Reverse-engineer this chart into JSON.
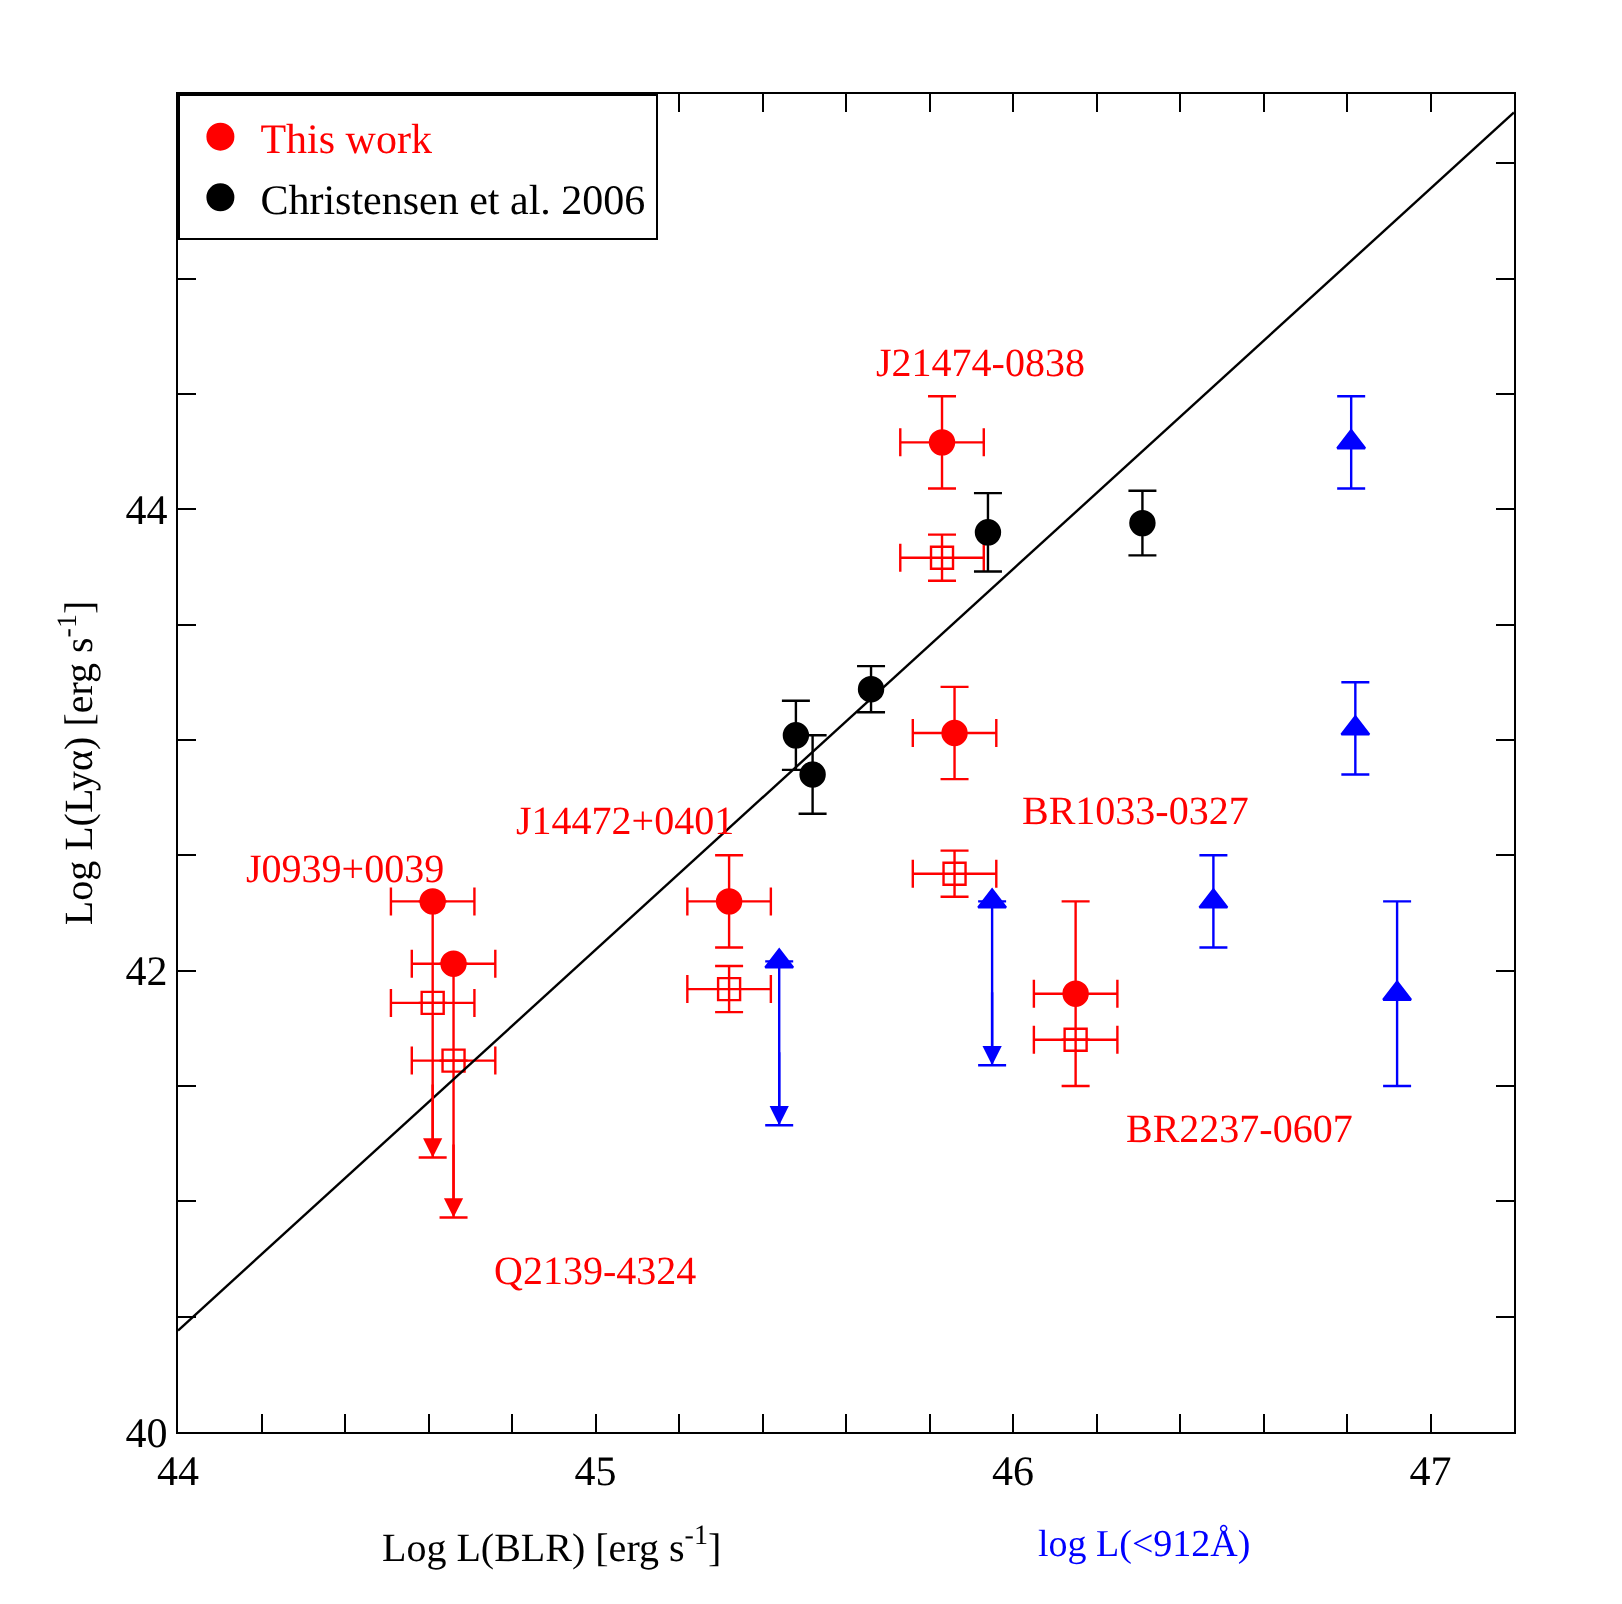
{
  "chart_data": {
    "type": "scatter",
    "xlabel": "Log L(BLR) [erg s$^{-1}$]",
    "ylabel": "Log L(Lyα) [erg s$^{-1}$]",
    "xlim": [
      44,
      47.2
    ],
    "ylim": [
      40,
      45.8
    ],
    "xticks": [
      44,
      {
        "value": 44.2,
        "label": null
      },
      {
        "value": 44.4,
        "label": null
      },
      {
        "value": 44.6,
        "label": null
      },
      {
        "value": 44.8,
        "label": null
      },
      45,
      {
        "value": 45.2,
        "label": null
      },
      {
        "value": 45.4,
        "label": null
      },
      {
        "value": 45.6,
        "label": null
      },
      {
        "value": 45.8,
        "label": null
      },
      46,
      {
        "value": 46.2,
        "label": null
      },
      {
        "value": 46.4,
        "label": null
      },
      {
        "value": 46.6,
        "label": null
      },
      {
        "value": 46.8,
        "label": null
      },
      47
    ],
    "yticks": [
      40,
      {
        "value": 40.5,
        "label": null
      },
      {
        "value": 41,
        "label": null
      },
      {
        "value": 41.5,
        "label": null
      },
      42,
      {
        "value": 42.5,
        "label": null
      },
      {
        "value": 43,
        "label": null
      },
      {
        "value": 43.5,
        "label": null
      },
      44,
      {
        "value": 44.5,
        "label": null
      },
      {
        "value": 45,
        "label": null
      },
      {
        "value": 45.5,
        "label": null
      }
    ],
    "legend": "top left",
    "series": [
      {
        "name": "This work",
        "color": "#ff0000",
        "marker": "circle",
        "x": [
          44.61,
          44.66,
          45.32,
          45.83,
          45.86,
          46.15
        ],
        "values": [
          42.3,
          42.03,
          42.3,
          44.29,
          43.03,
          41.9
        ],
        "xerrors": [
          0.1,
          0.1,
          0.1,
          0.1,
          0.1,
          0.1
        ],
        "errors": [
          [
            41.19,
            42.3
          ],
          [
            40.93,
            42.03
          ],
          0.2,
          0.2,
          0.2,
          0.4
        ]
      },
      {
        "color": "#ff0000",
        "marker": "square",
        "x": [
          44.61,
          44.66,
          45.32,
          45.83,
          45.86,
          46.15
        ],
        "values": [
          41.86,
          41.61,
          41.92,
          43.79,
          42.42,
          41.7
        ],
        "xerrors": [
          0.1,
          0.1,
          0.1,
          0.1,
          0.1,
          0.1
        ],
        "errors": [
          null,
          null,
          0.1,
          0.1,
          0.1,
          null
        ]
      },
      {
        "name": "Christensen et al. 2006",
        "color": "#000000",
        "marker": "circle",
        "x": [
          45.48,
          45.52,
          45.66,
          45.94,
          46.31
        ],
        "values": [
          43.02,
          42.85,
          43.22,
          43.9,
          43.94
        ],
        "errors": [
          0.15,
          0.17,
          0.1,
          0.17,
          0.14
        ]
      },
      {
        "color": "#0000ff",
        "marker": "triangle",
        "x": [
          46.81,
          46.82,
          46.48,
          46.92,
          45.44,
          45.95
        ],
        "values": [
          44.29,
          43.05,
          42.3,
          41.9,
          42.04,
          42.3
        ],
        "errors": [
          0.2,
          0.2,
          0.2,
          0.4,
          [
            41.33,
            42.04
          ],
          [
            41.59,
            42.3
          ]
        ]
      },
      {
        "type": "line",
        "color": "#000000",
        "marker": "none",
        "line_style": "solid",
        "x": [
          44,
          47.2
        ],
        "values": [
          40.44,
          45.72
        ]
      }
    ],
    "annotations": [
      {
        "text": "J21474-0838",
        "x": 45.83,
        "y": 44.29
      },
      {
        "text": "J14472+0401",
        "x": 45.32,
        "y": 42.3
      },
      {
        "text": "J0939+0039",
        "x": 44.61,
        "y": 42.3
      },
      {
        "text": "BR1033-0327",
        "x": 45.86,
        "y": 42.42
      },
      {
        "text": "BR2237-0607",
        "x": 46.15,
        "y": 41.7
      },
      {
        "text": "Q2139-4324",
        "x": 44.66,
        "y": 40.93
      },
      "log L(<912Å)"
    ]
  }
}
